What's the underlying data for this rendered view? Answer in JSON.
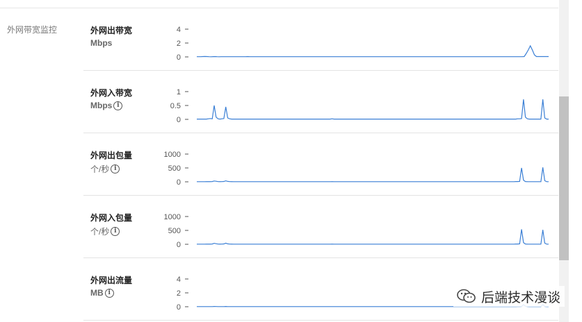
{
  "section": {
    "title": "外网带宽监控"
  },
  "panels": [
    {
      "id": "out-bandwidth",
      "name": "外网出带宽",
      "unit": "Mbps",
      "info_icon": false,
      "y_ticks": [
        "4",
        "2",
        "0"
      ],
      "y_max": 4,
      "series": [
        0.03,
        0.03,
        0.03,
        0.05,
        0.06,
        0.05,
        0.03,
        0.02,
        0.04,
        0.05,
        0.03,
        0.02,
        0.03,
        0.03,
        0.03,
        0.03,
        0.03,
        0.03,
        0.03,
        0.03,
        0.03,
        0.03,
        0.03,
        0.03,
        0.03,
        0.05,
        0.03,
        0.03,
        0.03,
        0.03,
        0.03,
        0.03,
        0.03,
        0.03,
        0.03,
        0.03,
        0.03,
        0.03,
        0.03,
        0.03,
        0.03,
        0.03,
        0.03,
        0.03,
        0.03,
        0.03,
        0.03,
        0.03,
        0.03,
        0.03,
        0.03,
        0.03,
        0.03,
        0.03,
        0.03,
        0.03,
        0.03,
        0.03,
        0.03,
        0.03,
        0.03,
        0.03,
        0.03,
        0.03,
        0.03,
        0.03,
        0.03,
        0.03,
        0.03,
        0.03,
        0.03,
        0.03,
        0.03,
        0.03,
        0.03,
        0.03,
        0.03,
        0.03,
        0.03,
        0.03,
        0.03,
        0.03,
        0.03,
        0.03,
        0.03,
        0.03,
        0.03,
        0.03,
        0.03,
        0.03,
        0.03,
        0.03,
        0.03,
        0.03,
        0.03,
        0.03,
        0.03,
        0.03,
        0.03,
        0.03,
        0.03,
        0.03,
        0.03,
        0.03,
        0.03,
        0.03,
        0.03,
        0.03,
        0.03,
        0.03,
        0.03,
        0.03,
        0.03,
        0.03,
        0.03,
        0.03,
        0.03,
        0.03,
        0.03,
        0.03,
        0.03,
        0.03,
        0.03,
        0.03,
        0.03,
        0.03,
        0.03,
        0.03,
        0.03,
        0.03,
        0.03,
        0.03,
        0.03,
        0.03,
        0.03,
        0.03,
        0.03,
        0.03,
        0.03,
        0.03,
        0.03,
        0.03,
        0.03,
        0.03,
        0.03,
        0.03,
        0.03,
        0.03,
        0.03,
        0.03,
        0.03,
        0.03,
        0.03,
        0.03,
        0.03,
        0.03,
        0.03,
        0.03,
        0.03,
        0.03,
        0.03,
        0.05,
        0.5,
        1.0,
        1.6,
        1.0,
        0.3,
        0.05,
        0.05,
        0.05,
        0.05,
        0.05,
        0.05,
        0.05
      ]
    },
    {
      "id": "in-bandwidth",
      "name": "外网入带宽",
      "unit": "Mbps",
      "info_icon": true,
      "y_ticks": [
        "1",
        "0.5",
        "0"
      ],
      "y_max": 1,
      "series": [
        0.01,
        0.01,
        0.01,
        0.01,
        0.01,
        0.01,
        0.02,
        0.03,
        0.02,
        0.5,
        0.08,
        0.02,
        0.01,
        0.02,
        0.03,
        0.45,
        0.05,
        0.02,
        0.01,
        0.01,
        0.01,
        0.01,
        0.01,
        0.01,
        0.01,
        0.01,
        0.01,
        0.01,
        0.01,
        0.01,
        0.01,
        0.01,
        0.01,
        0.01,
        0.01,
        0.01,
        0.01,
        0.01,
        0.01,
        0.01,
        0.01,
        0.01,
        0.01,
        0.01,
        0.01,
        0.01,
        0.01,
        0.01,
        0.01,
        0.01,
        0.01,
        0.01,
        0.01,
        0.01,
        0.01,
        0.01,
        0.01,
        0.01,
        0.01,
        0.01,
        0.01,
        0.01,
        0.01,
        0.01,
        0.01,
        0.01,
        0.01,
        0.01,
        0.01,
        0.01,
        0.02,
        0.01,
        0.01,
        0.01,
        0.01,
        0.01,
        0.01,
        0.01,
        0.01,
        0.01,
        0.01,
        0.01,
        0.01,
        0.01,
        0.01,
        0.01,
        0.01,
        0.01,
        0.01,
        0.01,
        0.01,
        0.01,
        0.01,
        0.01,
        0.01,
        0.01,
        0.01,
        0.01,
        0.01,
        0.01,
        0.01,
        0.01,
        0.01,
        0.01,
        0.01,
        0.01,
        0.01,
        0.01,
        0.01,
        0.01,
        0.01,
        0.01,
        0.01,
        0.01,
        0.01,
        0.01,
        0.01,
        0.01,
        0.01,
        0.01,
        0.01,
        0.01,
        0.01,
        0.01,
        0.01,
        0.01,
        0.01,
        0.01,
        0.01,
        0.01,
        0.01,
        0.01,
        0.01,
        0.01,
        0.01,
        0.01,
        0.01,
        0.01,
        0.01,
        0.01,
        0.01,
        0.01,
        0.01,
        0.01,
        0.01,
        0.01,
        0.01,
        0.01,
        0.01,
        0.01,
        0.01,
        0.01,
        0.01,
        0.01,
        0.01,
        0.01,
        0.01,
        0.01,
        0.01,
        0.01,
        0.01,
        0.01,
        0.01,
        0.01,
        0.01,
        0.01,
        0.02,
        0.02,
        0.03,
        0.72,
        0.08,
        0.02,
        0.01,
        0.01,
        0.01,
        0.01,
        0.01,
        0.01,
        0.01,
        0.72,
        0.05,
        0.01,
        0.01
      ]
    },
    {
      "id": "out-packets",
      "name": "外网出包量",
      "unit": "个/秒",
      "info_icon": true,
      "y_ticks": [
        "1000",
        "500",
        "0"
      ],
      "y_max": 1000,
      "series": [
        5,
        5,
        5,
        5,
        5,
        6,
        8,
        6,
        10,
        30,
        20,
        8,
        6,
        8,
        12,
        35,
        15,
        8,
        6,
        5,
        5,
        5,
        5,
        5,
        5,
        5,
        5,
        5,
        5,
        5,
        5,
        5,
        5,
        5,
        5,
        5,
        5,
        5,
        5,
        5,
        5,
        5,
        5,
        5,
        5,
        5,
        5,
        5,
        5,
        5,
        5,
        5,
        5,
        5,
        5,
        5,
        5,
        5,
        5,
        5,
        5,
        5,
        5,
        5,
        5,
        5,
        5,
        5,
        5,
        5,
        8,
        5,
        5,
        5,
        5,
        5,
        5,
        5,
        5,
        5,
        5,
        5,
        5,
        5,
        5,
        5,
        5,
        5,
        5,
        5,
        5,
        5,
        5,
        5,
        5,
        5,
        5,
        5,
        5,
        5,
        5,
        5,
        5,
        5,
        5,
        5,
        5,
        5,
        5,
        5,
        5,
        5,
        5,
        5,
        5,
        5,
        5,
        5,
        5,
        5,
        5,
        5,
        5,
        5,
        5,
        5,
        5,
        5,
        5,
        5,
        5,
        5,
        5,
        5,
        5,
        5,
        5,
        5,
        5,
        5,
        5,
        5,
        5,
        5,
        5,
        5,
        5,
        5,
        5,
        5,
        5,
        5,
        5,
        5,
        5,
        5,
        5,
        5,
        5,
        5,
        5,
        5,
        5,
        5,
        5,
        10,
        10,
        15,
        500,
        60,
        10,
        6,
        5,
        5,
        5,
        5,
        5,
        5,
        5,
        520,
        40,
        5,
        5
      ]
    },
    {
      "id": "in-packets",
      "name": "外网入包量",
      "unit": "个/秒",
      "info_icon": true,
      "y_ticks": [
        "1000",
        "500",
        "0"
      ],
      "y_max": 1000,
      "series": [
        5,
        5,
        5,
        5,
        5,
        6,
        8,
        6,
        10,
        35,
        20,
        8,
        6,
        8,
        12,
        40,
        15,
        8,
        6,
        5,
        5,
        5,
        5,
        5,
        5,
        5,
        5,
        5,
        5,
        5,
        5,
        5,
        5,
        5,
        5,
        5,
        5,
        5,
        5,
        5,
        5,
        5,
        5,
        5,
        5,
        5,
        5,
        5,
        5,
        5,
        5,
        5,
        5,
        5,
        5,
        5,
        5,
        5,
        5,
        5,
        5,
        5,
        5,
        5,
        5,
        5,
        5,
        5,
        5,
        5,
        8,
        5,
        5,
        5,
        5,
        5,
        5,
        5,
        5,
        5,
        5,
        5,
        5,
        5,
        5,
        5,
        5,
        5,
        5,
        5,
        5,
        5,
        5,
        5,
        5,
        5,
        5,
        5,
        5,
        5,
        5,
        5,
        5,
        5,
        5,
        5,
        5,
        5,
        5,
        5,
        5,
        5,
        5,
        5,
        5,
        5,
        5,
        5,
        5,
        5,
        5,
        5,
        5,
        5,
        5,
        5,
        5,
        5,
        5,
        5,
        5,
        5,
        5,
        5,
        5,
        5,
        5,
        5,
        5,
        5,
        5,
        5,
        5,
        5,
        5,
        5,
        5,
        5,
        5,
        5,
        5,
        5,
        5,
        5,
        5,
        5,
        5,
        5,
        5,
        5,
        5,
        5,
        5,
        5,
        5,
        10,
        10,
        15,
        540,
        60,
        10,
        6,
        5,
        5,
        5,
        5,
        5,
        5,
        5,
        520,
        40,
        5,
        5
      ]
    },
    {
      "id": "out-traffic",
      "name": "外网出流量",
      "unit": "MB",
      "info_icon": true,
      "y_ticks": [
        "4",
        "2",
        "0"
      ],
      "y_max": 4,
      "series": [
        0.02,
        0.02,
        0.02,
        0.02,
        0.02,
        0.02,
        0.02,
        0.02,
        0.02,
        0.04,
        0.03,
        0.02,
        0.02,
        0.02,
        0.02,
        0.04,
        0.02,
        0.02,
        0.02,
        0.02,
        0.02,
        0.02,
        0.02,
        0.02,
        0.02,
        0.02,
        0.02,
        0.02,
        0.02,
        0.02,
        0.02,
        0.02,
        0.02,
        0.02,
        0.02,
        0.02,
        0.02,
        0.02,
        0.02,
        0.02,
        0.02,
        0.02,
        0.02,
        0.02,
        0.02,
        0.02,
        0.02,
        0.02,
        0.02,
        0.02,
        0.02,
        0.02,
        0.02,
        0.02,
        0.02,
        0.02,
        0.02,
        0.02,
        0.02,
        0.02,
        0.02,
        0.02,
        0.02,
        0.02,
        0.02,
        0.02,
        0.02,
        0.02,
        0.02,
        0.02,
        0.02,
        0.02,
        0.02,
        0.02,
        0.02,
        0.02,
        0.02,
        0.02,
        0.02,
        0.02,
        0.02,
        0.02,
        0.02,
        0.02,
        0.02,
        0.02,
        0.02,
        0.02,
        0.02,
        0.02,
        0.02,
        0.02,
        0.02,
        0.02,
        0.02,
        0.02,
        0.02,
        0.02,
        0.02,
        0.02,
        0.02,
        0.02,
        0.02,
        0.02,
        0.02,
        0.02,
        0.02,
        0.02,
        0.02,
        0.02,
        0.02,
        0.02,
        0.02,
        0.02,
        0.02,
        0.02,
        0.02,
        0.02,
        0.02,
        0.02,
        0.02,
        0.02,
        0.02,
        0.02,
        0.02,
        0.02,
        0.02,
        0.02,
        0.02,
        0.02,
        0.02,
        0.02,
        0.02,
        0.02,
        0.02,
        0.02,
        0.02,
        0.02,
        0.02,
        0.02,
        0.02,
        0.02,
        0.02,
        0.02,
        0.02,
        0.02,
        0.02,
        0.02,
        0.02,
        0.02,
        0.02,
        0.02,
        0.02,
        0.02,
        0.02,
        0.02,
        0.02,
        0.02,
        0.02,
        0.02,
        0.02,
        0.02,
        0.02,
        0.02,
        0.02,
        0.02,
        0.04,
        0.04,
        0.05,
        0.3,
        0.08,
        0.03,
        0.02,
        0.02,
        0.02,
        0.02,
        0.02,
        0.02,
        0.02,
        0.3,
        0.05,
        0.02,
        0.02
      ]
    }
  ],
  "colors": {
    "line": "#3a7fd5",
    "tick": "#555555",
    "divider": "#e3e3e3"
  },
  "watermark": {
    "text": "后端技术漫谈",
    "icon": "wechat-icon"
  }
}
